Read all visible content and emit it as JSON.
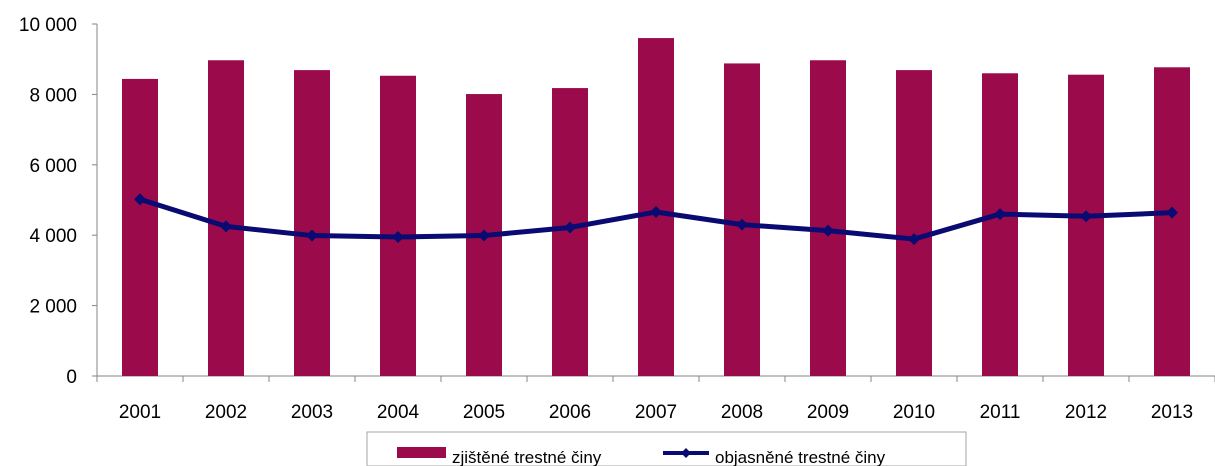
{
  "chart_data": {
    "type": "bar",
    "title": "",
    "xlabel": "",
    "ylabel": "",
    "categories": [
      "2001",
      "2002",
      "2003",
      "2004",
      "2005",
      "2006",
      "2007",
      "2008",
      "2009",
      "2010",
      "2011",
      "2012",
      "2013"
    ],
    "series": [
      {
        "name": "zjištěné trestné činy",
        "type": "bar",
        "color": "#9b0a4a",
        "values": [
          8440,
          8970,
          8690,
          8530,
          8010,
          8180,
          9600,
          8880,
          8970,
          8690,
          8600,
          8560,
          8770
        ]
      },
      {
        "name": "objasněné trestné činy",
        "type": "line",
        "marker": "diamond",
        "color": "#0a0a73",
        "values": [
          5020,
          4250,
          3990,
          3950,
          3990,
          4220,
          4660,
          4300,
          4130,
          3890,
          4600,
          4540,
          4640
        ]
      }
    ],
    "ylim": [
      0,
      10000
    ],
    "yticks": [
      0,
      2000,
      4000,
      6000,
      8000,
      10000
    ],
    "ytick_labels": [
      "0",
      "2 000",
      "4 000",
      "6 000",
      "8 000",
      "10 000"
    ],
    "grid": false,
    "legend_position": "bottom"
  }
}
